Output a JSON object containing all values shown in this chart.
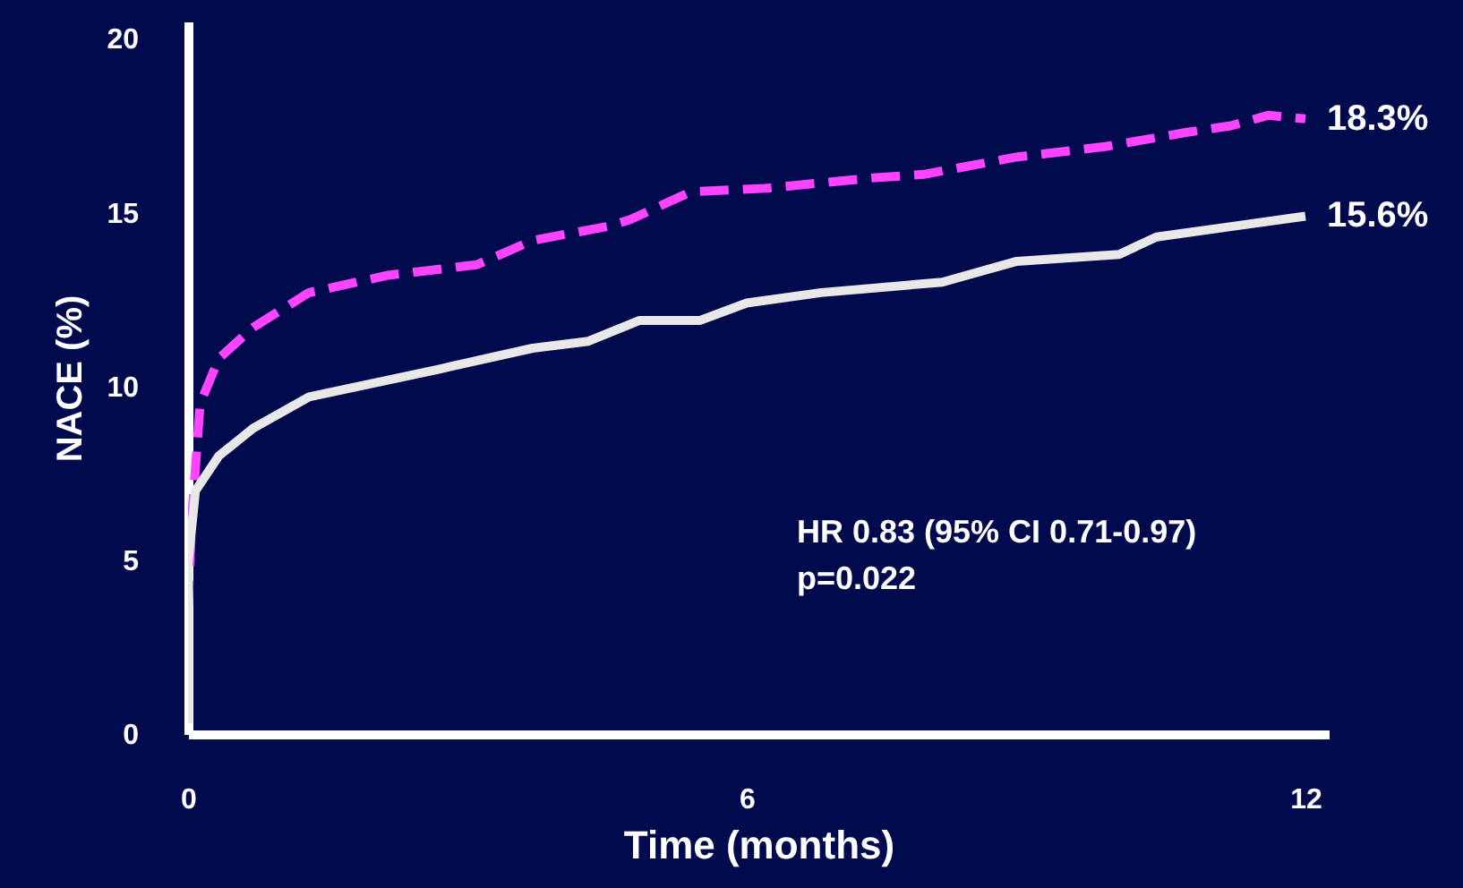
{
  "chart_data": {
    "type": "line",
    "xlabel": "Time (months)",
    "ylabel": "NACE (%)",
    "x": [
      0,
      0.04,
      0.13,
      0.33,
      0.7,
      1.3,
      2.15,
      3.1,
      3.7,
      4.5,
      4.75,
      5.4,
      6.2,
      7.35,
      7.9,
      8.9,
      9.85,
      10.7,
      11.2,
      11.6,
      12
    ],
    "series": [
      {
        "color": "#ff44ff",
        "line_style": "dashed",
        "values": [
          3.6,
          6.2,
          9.5,
          10.8,
          11.7,
          12.7,
          13.2,
          13.5,
          14.2,
          14.6,
          14.8,
          15.6,
          15.7,
          16.0,
          16.1,
          16.6,
          16.9,
          17.3,
          17.5,
          17.8,
          17.7
        ]
      },
      {
        "color": "#e8e8e8",
        "line_style": "solid",
        "x": [
          0,
          0,
          0.08,
          0.33,
          0.7,
          1.3,
          2,
          2.7,
          3.7,
          4.3,
          4.85,
          5.5,
          6,
          6.8,
          8.1,
          8.9,
          10,
          10.4,
          11.2,
          12
        ],
        "values": [
          0.3,
          4.9,
          7,
          8,
          8.8,
          9.7,
          10.1,
          10.5,
          11.1,
          11.3,
          11.9,
          11.9,
          12.4,
          12.7,
          13.0,
          13.6,
          13.8,
          14.3,
          14.6,
          14.9
        ]
      }
    ],
    "xlim": [
      0,
      12.25
    ],
    "xticks": [
      0,
      6,
      12
    ],
    "ylim": [
      0,
      20.5
    ],
    "yticks": [
      0,
      5,
      10,
      15,
      20
    ],
    "grid": false,
    "marker": "none",
    "annotations": [
      {
        "text": "18.3%",
        "x": 12,
        "y": 17.7
      },
      {
        "text": "15.6%",
        "x": 12,
        "y": 14.9
      },
      "HR 0.83 (95% CI 0.71-0.97)",
      "p=0.022"
    ]
  }
}
